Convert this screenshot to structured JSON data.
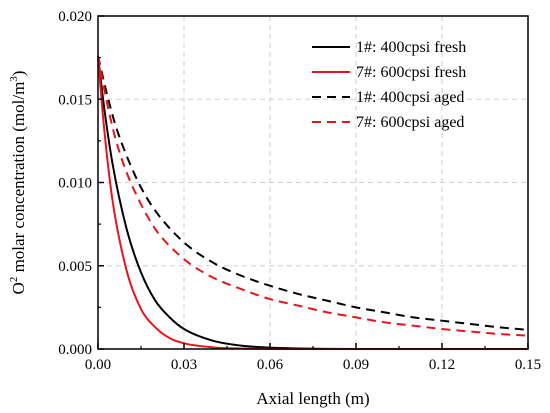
{
  "chart_data": {
    "type": "line",
    "xlabel": "Axial length (m)",
    "ylabel": {
      "prefix": "O",
      "sup": "2",
      "middle": " molar concentration  (mol/m",
      "unit_sup": "3",
      "suffix": ")"
    },
    "xlim": [
      0.0,
      0.15
    ],
    "ylim": [
      0.0,
      0.02
    ],
    "x_ticks": [
      0.0,
      0.03,
      0.06,
      0.09,
      0.12,
      0.15
    ],
    "x_tick_labels": [
      "0.00",
      "0.03",
      "0.06",
      "0.09",
      "0.12",
      "0.15"
    ],
    "y_ticks": [
      0.0,
      0.005,
      0.01,
      0.015,
      0.02
    ],
    "y_tick_labels": [
      "0.000",
      "0.005",
      "0.010",
      "0.015",
      "0.020"
    ],
    "grid": true,
    "legend_position": "top-right",
    "series": [
      {
        "name": "1#: 400cpsi fresh",
        "color": "#000000",
        "dash": "solid",
        "x": [
          0.0,
          0.002,
          0.005,
          0.01,
          0.015,
          0.02,
          0.025,
          0.03,
          0.04,
          0.05,
          0.06,
          0.08,
          0.1,
          0.12,
          0.15
        ],
        "y": [
          0.0176,
          0.0147,
          0.0112,
          0.0072,
          0.0046,
          0.0029,
          0.0019,
          0.0012,
          0.0005,
          0.0002,
          8e-05,
          1e-05,
          0.0,
          0.0,
          0.0
        ]
      },
      {
        "name": "7#: 600cpsi fresh",
        "color": "#e8141b",
        "dash": "solid",
        "x": [
          0.0,
          0.002,
          0.005,
          0.01,
          0.015,
          0.02,
          0.025,
          0.03,
          0.04,
          0.05,
          0.06,
          0.08,
          0.1,
          0.12,
          0.15
        ],
        "y": [
          0.0176,
          0.0135,
          0.009,
          0.0047,
          0.0024,
          0.0013,
          0.00065,
          0.00034,
          0.0001,
          3e-05,
          1e-05,
          0.0,
          0.0,
          0.0,
          0.0
        ]
      },
      {
        "name": "1#: 400cpsi aged",
        "color": "#000000",
        "dash": "dashed",
        "x": [
          0.0,
          0.003,
          0.006,
          0.01,
          0.015,
          0.02,
          0.03,
          0.04,
          0.05,
          0.06,
          0.07,
          0.08,
          0.09,
          0.1,
          0.11,
          0.12,
          0.13,
          0.14,
          0.15
        ],
        "y": [
          0.0176,
          0.0154,
          0.0135,
          0.0116,
          0.0097,
          0.0083,
          0.0064,
          0.0052,
          0.0044,
          0.0038,
          0.0033,
          0.0029,
          0.0025,
          0.0022,
          0.0019,
          0.0017,
          0.0015,
          0.0013,
          0.00115
        ]
      },
      {
        "name": "7#: 600cpsi aged",
        "color": "#e8141b",
        "dash": "dashed",
        "x": [
          0.0,
          0.003,
          0.006,
          0.01,
          0.015,
          0.02,
          0.03,
          0.04,
          0.05,
          0.06,
          0.07,
          0.08,
          0.09,
          0.1,
          0.11,
          0.12,
          0.13,
          0.14,
          0.15
        ],
        "y": [
          0.0176,
          0.0149,
          0.0127,
          0.0106,
          0.0087,
          0.0072,
          0.0054,
          0.0043,
          0.0036,
          0.003,
          0.0026,
          0.0022,
          0.0019,
          0.0016,
          0.0014,
          0.0012,
          0.00105,
          0.0009,
          0.0008
        ]
      }
    ]
  }
}
